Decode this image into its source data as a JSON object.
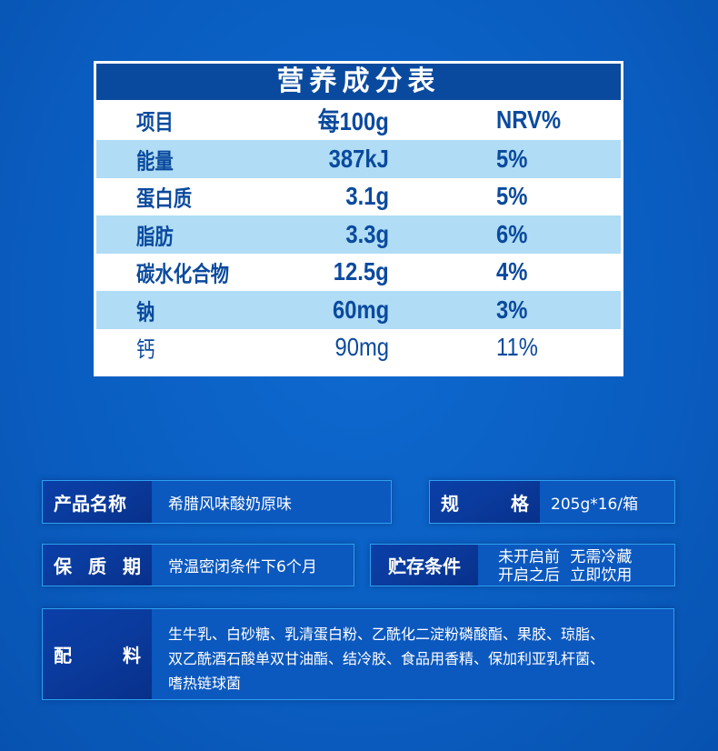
{
  "nutrition": {
    "title": "营养成分表",
    "headers": [
      "项目",
      "每100g",
      "NRV%"
    ],
    "rows": [
      {
        "name": "能量",
        "per100g": "387kJ",
        "nrv": "5%"
      },
      {
        "name": "蛋白质",
        "per100g": "3.1g",
        "nrv": "5%"
      },
      {
        "name": "脂肪",
        "per100g": "3.3g",
        "nrv": "6%"
      },
      {
        "name": "碳水化合物",
        "per100g": "12.5g",
        "nrv": "4%"
      },
      {
        "name": "钠",
        "per100g": "60mg",
        "nrv": "3%"
      },
      {
        "name": "钙",
        "per100g": "90mg",
        "nrv": "11%"
      }
    ]
  },
  "info": {
    "product_name": {
      "label": [
        "产品名称"
      ],
      "value": "希腊风味酸奶原味"
    },
    "spec": {
      "label": [
        "规",
        "格"
      ],
      "value": "205g*16/箱"
    },
    "shelf_life": {
      "label": [
        "保",
        "质",
        "期"
      ],
      "value": "常温密闭条件下6个月"
    },
    "storage": {
      "label": [
        "贮存条件"
      ],
      "lines": [
        "未开启前 无需冷藏",
        "开启之后 立即饮用"
      ]
    },
    "ingredients": {
      "label": [
        "配",
        "料"
      ],
      "lines": [
        "生牛乳、白砂糖、乳清蛋白粉、乙酰化二淀粉磷酸酯、果胶、琼脂、",
        "双乙酰酒石酸单双甘油酯、结冷胶、食品用香精、保加利亚乳杆菌、",
        "嗜热链球菌"
      ]
    }
  },
  "colors": {
    "background": "#0a5dc0",
    "table_header": "#0a4a9e",
    "row_highlight": "#b0dcf5",
    "text": "#0a4a9e"
  }
}
